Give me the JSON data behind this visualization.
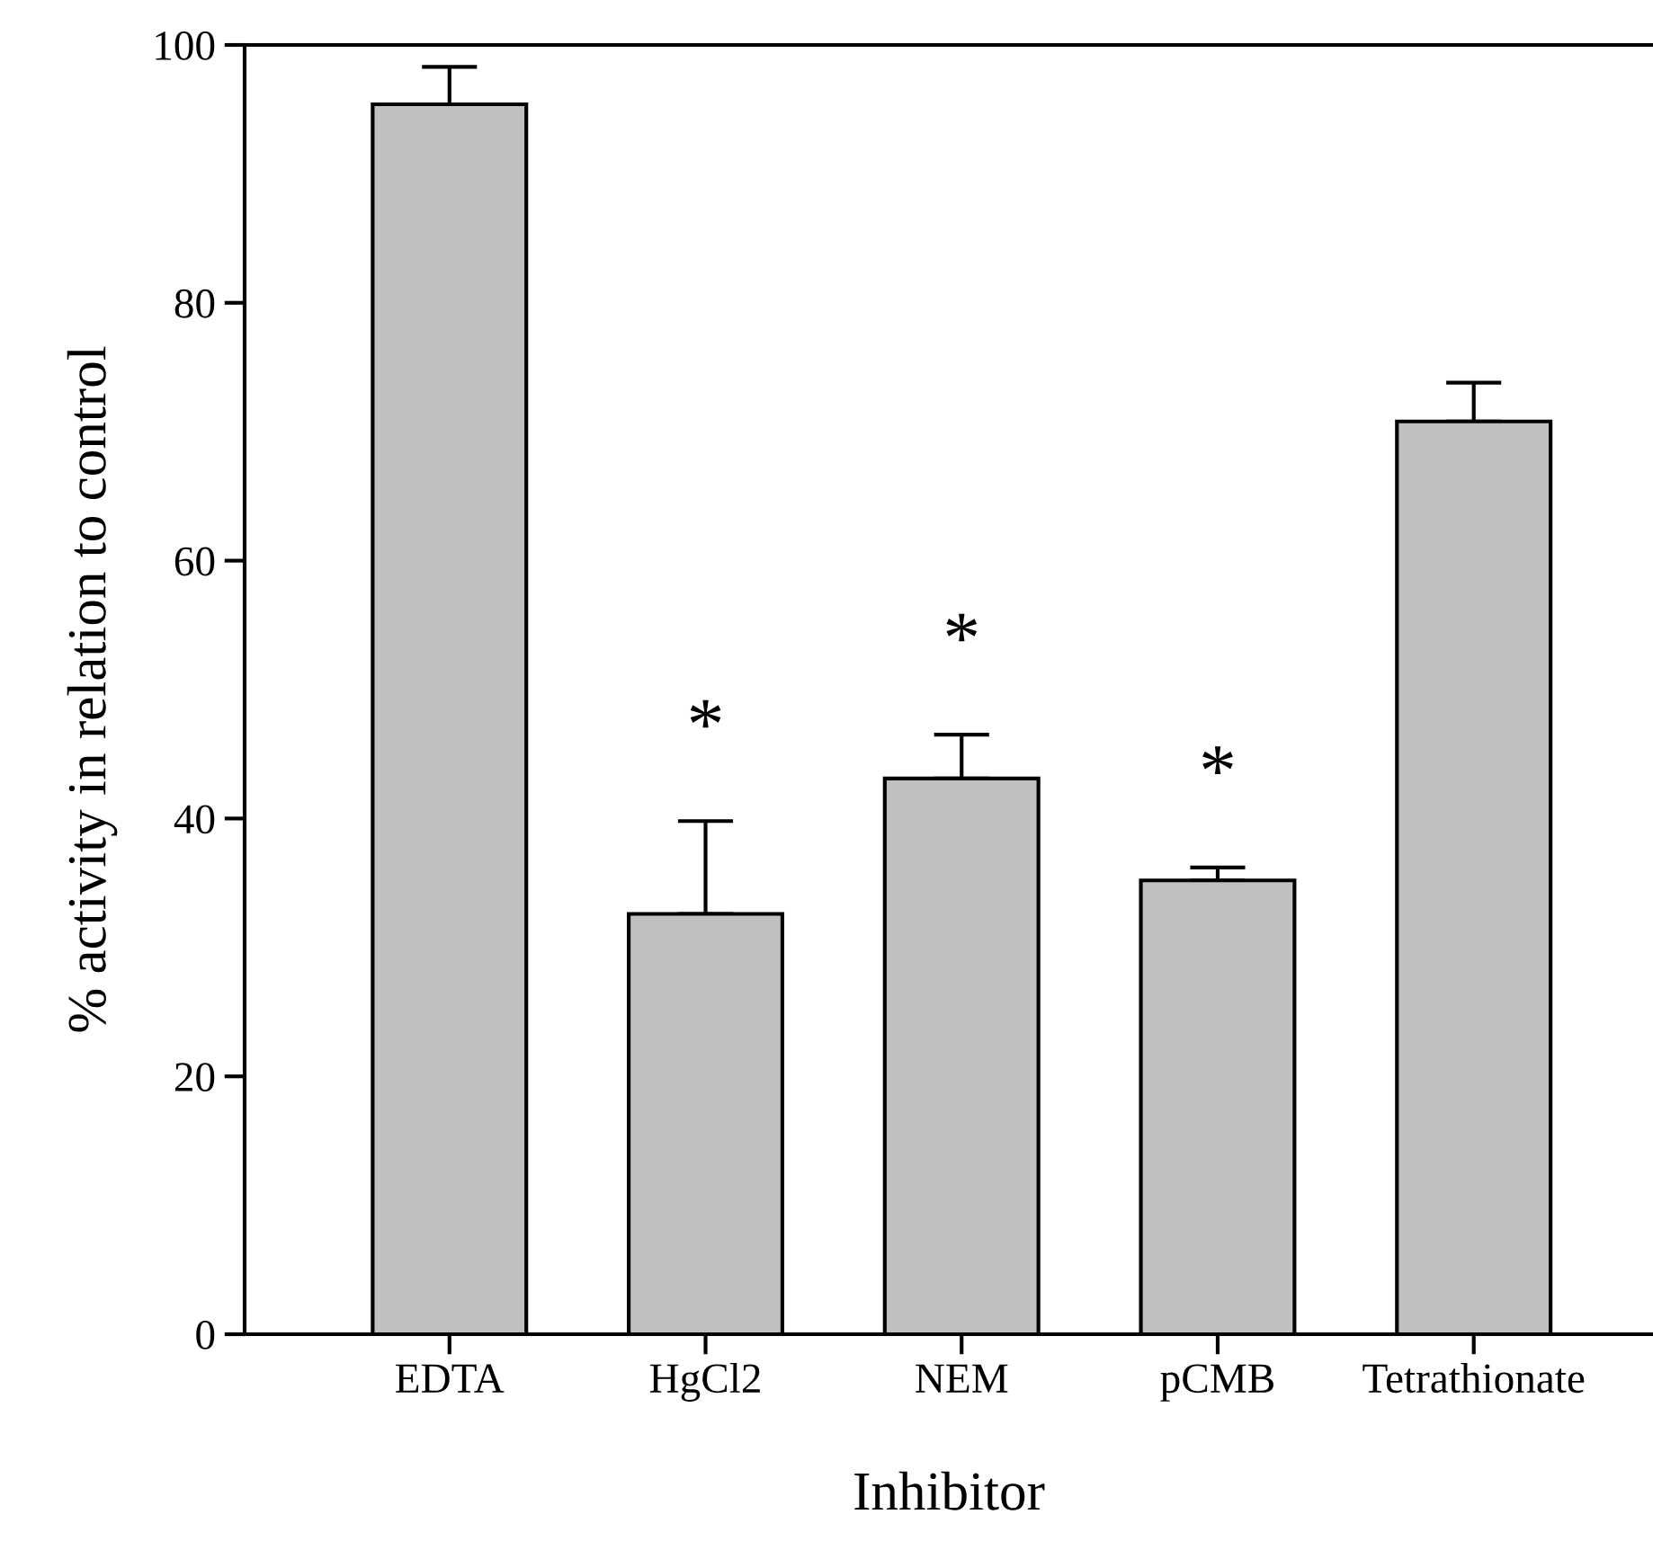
{
  "chart_data": {
    "type": "bar",
    "xlabel": "Inhibitor",
    "ylabel": "% activity in relation to control",
    "categories": [
      "EDTA",
      "HgCl2",
      "NEM",
      "pCMB",
      "Tetrathionate"
    ],
    "values": [
      95.4,
      32.6,
      43.1,
      35.2,
      70.8
    ],
    "errors": [
      [
        95.4,
        98.3
      ],
      [
        32.6,
        39.8
      ],
      [
        43.1,
        46.5
      ],
      [
        35.2,
        36.2
      ],
      [
        70.8,
        73.8
      ]
    ],
    "color": "#c0c0c0",
    "ylim": [
      0,
      100
    ],
    "yticks": [
      0,
      20,
      40,
      60,
      80,
      100
    ],
    "grid": false,
    "legend": false,
    "annotations": [
      {
        "text": "*",
        "x": "HgCl2",
        "y": 39.8
      },
      {
        "text": "*",
        "x": "NEM",
        "y": 46.5
      },
      {
        "text": "*",
        "x": "pCMB",
        "y": 36.2
      }
    ]
  }
}
